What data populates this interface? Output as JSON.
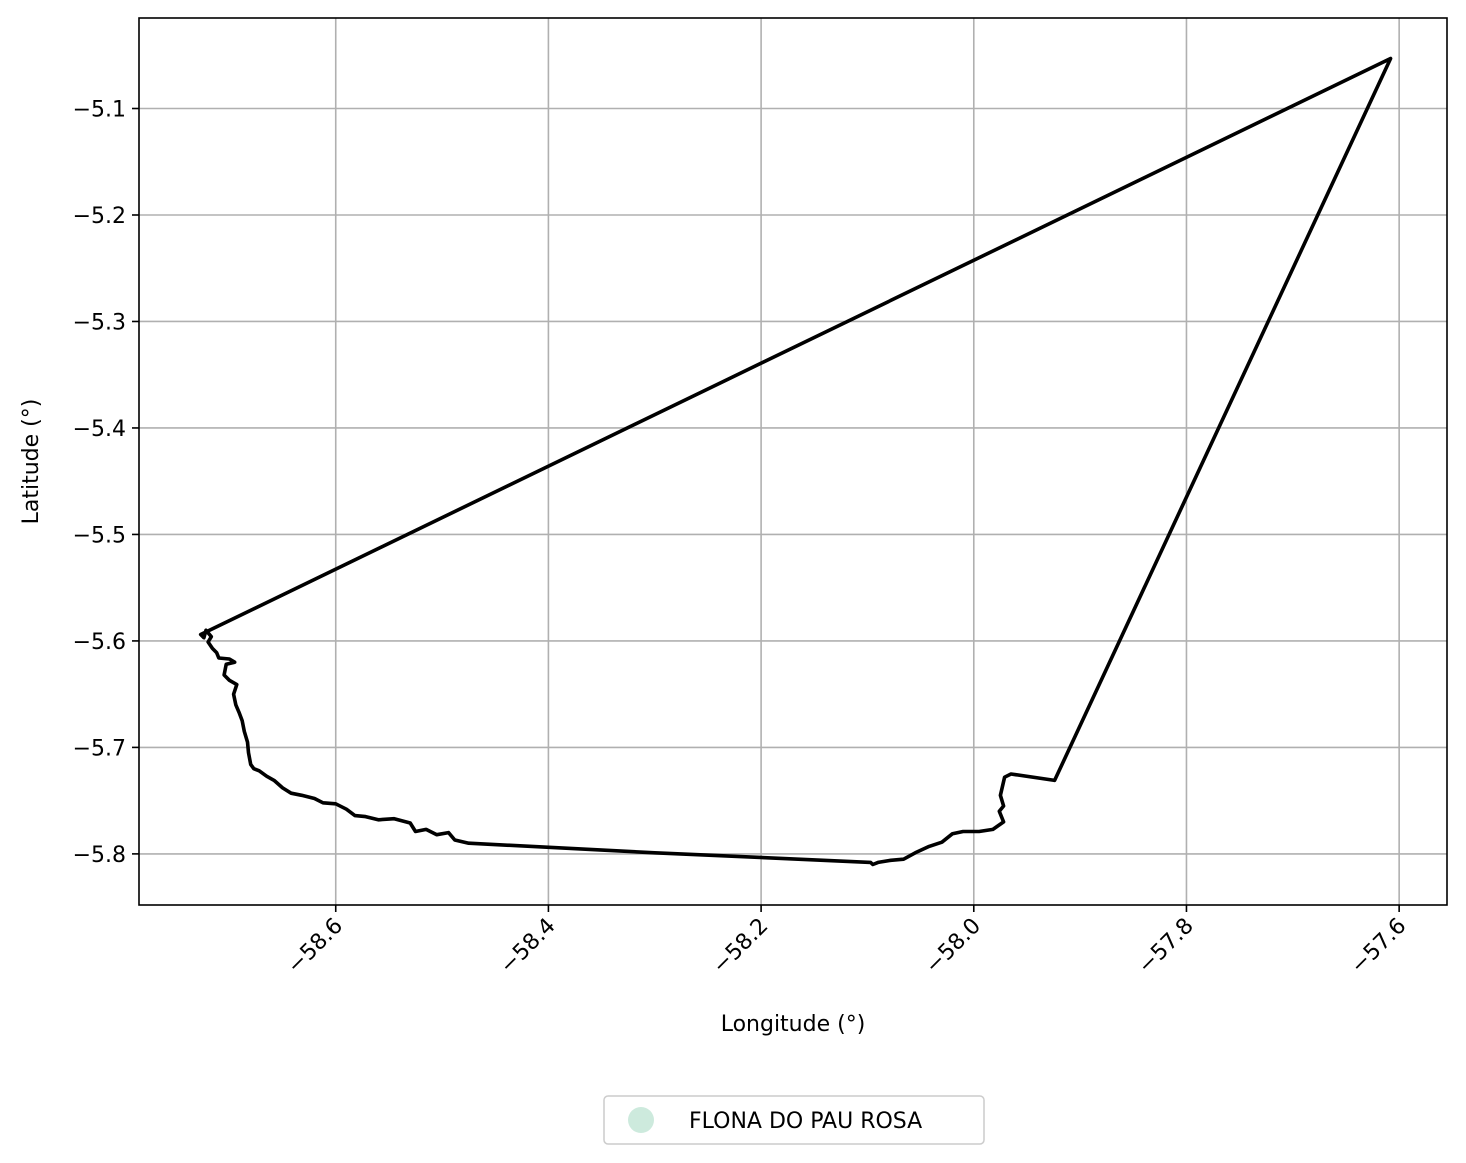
{
  "chart_data": {
    "type": "map",
    "xlabel": "Longitude (°)",
    "ylabel": "Latitude (°)",
    "xlim": [
      -58.785,
      -57.555
    ],
    "ylim": [
      -5.848,
      -5.015
    ],
    "grid": true,
    "x_ticks": [
      {
        "value": -58.6,
        "label": "−58.6"
      },
      {
        "value": -58.4,
        "label": "−58.4"
      },
      {
        "value": -58.2,
        "label": "−58.2"
      },
      {
        "value": -58.0,
        "label": "−58.0"
      },
      {
        "value": -57.8,
        "label": "−57.8"
      },
      {
        "value": -57.6,
        "label": "−57.6"
      }
    ],
    "y_ticks": [
      {
        "value": -5.1,
        "label": "−5.1"
      },
      {
        "value": -5.2,
        "label": "−5.2"
      },
      {
        "value": -5.3,
        "label": "−5.3"
      },
      {
        "value": -5.4,
        "label": "−5.4"
      },
      {
        "value": -5.5,
        "label": "−5.5"
      },
      {
        "value": -5.6,
        "label": "−5.6"
      },
      {
        "value": -5.7,
        "label": "−5.7"
      },
      {
        "value": -5.8,
        "label": "−5.8"
      }
    ],
    "series": [
      {
        "name": "FLONA DO PAU ROSA",
        "edge_color": "#000000",
        "legend_color": "#cdeadd",
        "boundary": [
          [
            -58.727,
            -5.594
          ],
          [
            -57.608,
            -5.053
          ],
          [
            -57.924,
            -5.731
          ],
          [
            -57.965,
            -5.725
          ],
          [
            -57.971,
            -5.728
          ],
          [
            -57.975,
            -5.745
          ],
          [
            -57.972,
            -5.755
          ],
          [
            -57.976,
            -5.76
          ],
          [
            -57.972,
            -5.77
          ],
          [
            -57.982,
            -5.777
          ],
          [
            -57.995,
            -5.779
          ],
          [
            -58.01,
            -5.779
          ],
          [
            -58.02,
            -5.781
          ],
          [
            -58.03,
            -5.789
          ],
          [
            -58.042,
            -5.793
          ],
          [
            -58.055,
            -5.799
          ],
          [
            -58.066,
            -5.805
          ],
          [
            -58.078,
            -5.806
          ],
          [
            -58.09,
            -5.808
          ],
          [
            -58.095,
            -5.81
          ],
          [
            -58.097,
            -5.808
          ],
          [
            -58.3,
            -5.799
          ],
          [
            -58.475,
            -5.79
          ],
          [
            -58.488,
            -5.787
          ],
          [
            -58.494,
            -5.78
          ],
          [
            -58.505,
            -5.782
          ],
          [
            -58.515,
            -5.777
          ],
          [
            -58.525,
            -5.779
          ],
          [
            -58.53,
            -5.771
          ],
          [
            -58.545,
            -5.767
          ],
          [
            -58.56,
            -5.768
          ],
          [
            -58.572,
            -5.765
          ],
          [
            -58.582,
            -5.764
          ],
          [
            -58.59,
            -5.758
          ],
          [
            -58.6,
            -5.753
          ],
          [
            -58.612,
            -5.752
          ],
          [
            -58.62,
            -5.748
          ],
          [
            -58.632,
            -5.745
          ],
          [
            -58.642,
            -5.743
          ],
          [
            -58.65,
            -5.738
          ],
          [
            -58.658,
            -5.731
          ],
          [
            -58.665,
            -5.727
          ],
          [
            -58.672,
            -5.722
          ],
          [
            -58.677,
            -5.72
          ],
          [
            -58.68,
            -5.716
          ],
          [
            -58.682,
            -5.705
          ],
          [
            -58.683,
            -5.695
          ],
          [
            -58.686,
            -5.685
          ],
          [
            -58.688,
            -5.675
          ],
          [
            -58.691,
            -5.667
          ],
          [
            -58.694,
            -5.66
          ],
          [
            -58.696,
            -5.65
          ],
          [
            -58.693,
            -5.641
          ],
          [
            -58.7,
            -5.637
          ],
          [
            -58.705,
            -5.632
          ],
          [
            -58.703,
            -5.622
          ],
          [
            -58.695,
            -5.62
          ],
          [
            -58.7,
            -5.617
          ],
          [
            -58.71,
            -5.616
          ],
          [
            -58.712,
            -5.611
          ],
          [
            -58.716,
            -5.607
          ],
          [
            -58.72,
            -5.601
          ],
          [
            -58.717,
            -5.596
          ],
          [
            -58.722,
            -5.59
          ],
          [
            -58.724,
            -5.597
          ],
          [
            -58.727,
            -5.594
          ]
        ]
      }
    ],
    "legend": {
      "placement": "bottom-center",
      "entries": [
        {
          "label": "FLONA DO PAU ROSA",
          "color": "#cdeadd"
        }
      ]
    }
  }
}
